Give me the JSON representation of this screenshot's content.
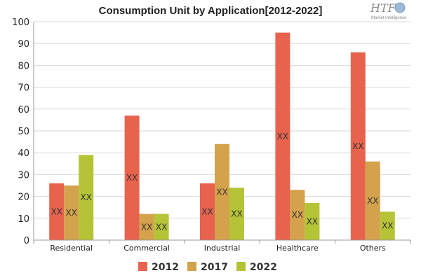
{
  "logo": {
    "brand": "HTF",
    "tagline": "Market Intelligence"
  },
  "chart_data": {
    "type": "bar",
    "title": "Consumption Unit by  Application[2012-2022]",
    "xlabel": "",
    "ylabel": "",
    "categories": [
      "Residential",
      "Commercial",
      "Industrial",
      "Healthcare",
      "Others"
    ],
    "series": [
      {
        "name": "2012",
        "color": "#e8634e",
        "values": [
          26,
          57,
          26,
          95,
          86
        ]
      },
      {
        "name": "2017",
        "color": "#d4a24c",
        "values": [
          25,
          12,
          44,
          23,
          36
        ]
      },
      {
        "name": "2022",
        "color": "#b5c437",
        "values": [
          39,
          12,
          24,
          17,
          13
        ]
      }
    ],
    "data_label": "XX",
    "ylim": [
      0,
      100
    ],
    "yticks": [
      0,
      10,
      20,
      30,
      40,
      50,
      60,
      70,
      80,
      90,
      100
    ],
    "grid": true,
    "legend": "bottom"
  }
}
